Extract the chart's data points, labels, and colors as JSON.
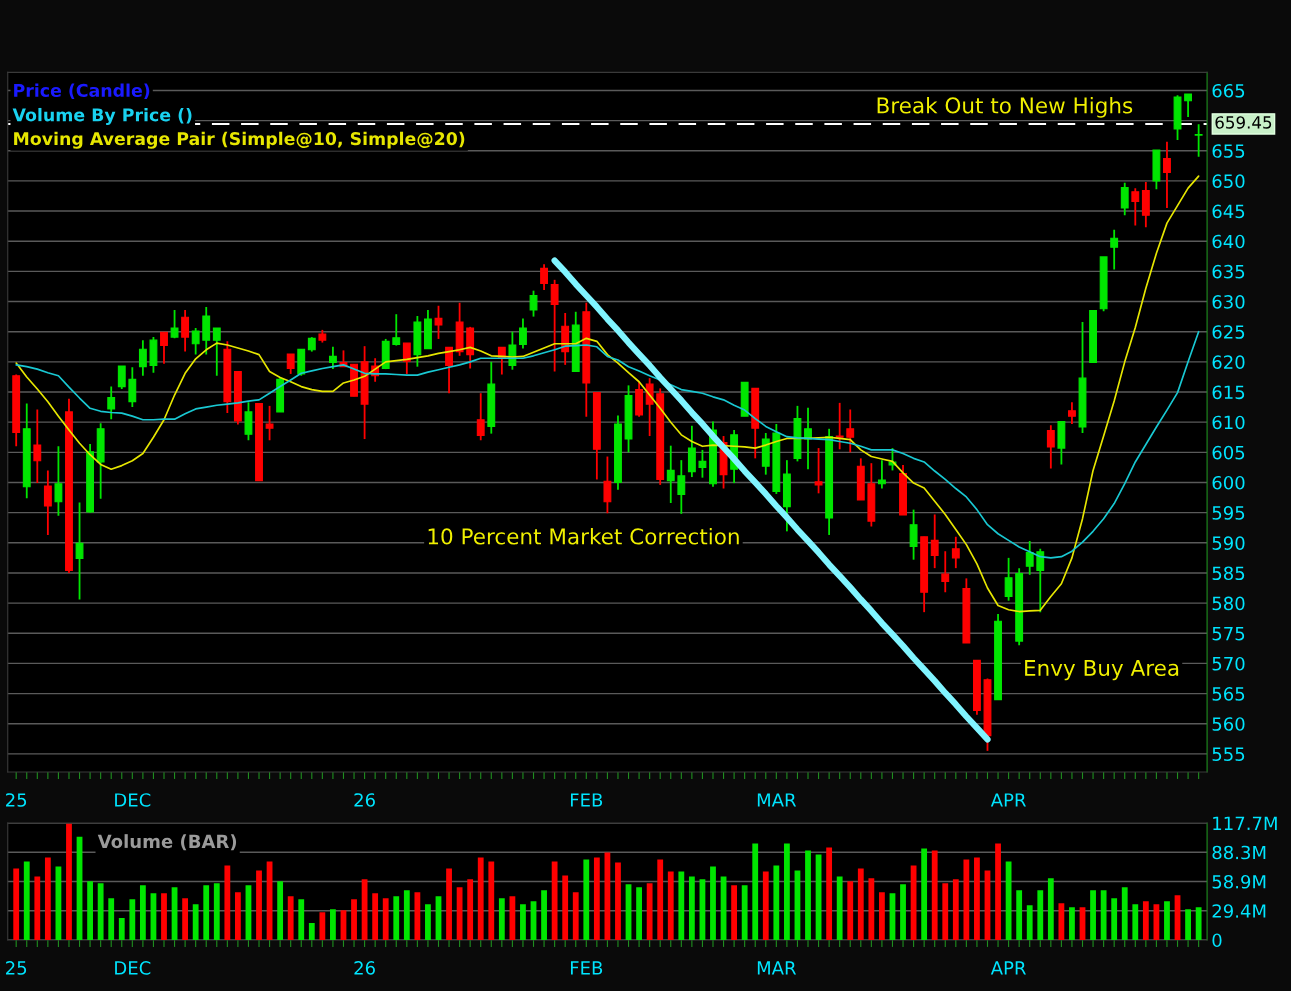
{
  "chart_data": [
    {
      "type": "candlestick",
      "categories": [
        "25",
        null,
        null,
        null,
        null,
        null,
        null,
        null,
        null,
        null,
        null,
        "DEC",
        null,
        null,
        null,
        null,
        null,
        null,
        null,
        null,
        null,
        null,
        null,
        null,
        null,
        null,
        null,
        null,
        null,
        null,
        null,
        null,
        null,
        "26",
        null,
        null,
        null,
        null,
        null,
        null,
        null,
        null,
        null,
        null,
        null,
        null,
        null,
        null,
        null,
        null,
        null,
        null,
        null,
        null,
        "FEB",
        null,
        null,
        null,
        null,
        null,
        null,
        null,
        null,
        null,
        null,
        null,
        null,
        null,
        null,
        null,
        null,
        null,
        "MAR",
        null,
        null,
        null,
        null,
        null,
        null,
        null,
        null,
        null,
        null,
        null,
        null,
        null,
        null,
        null,
        null,
        null,
        null,
        null,
        null,
        null,
        "APR",
        null,
        null,
        null,
        null,
        null,
        null,
        null,
        null,
        null,
        null,
        null,
        null,
        null,
        null,
        null,
        null,
        null,
        null
      ],
      "ohlc": [
        [
          617.7,
          617.9,
          606.0,
          608.3
        ],
        [
          599.3,
          613.1,
          597.4,
          608.9
        ],
        [
          606.2,
          612.1,
          599.9,
          603.6
        ],
        [
          599.4,
          602.0,
          591.3,
          596.1
        ],
        [
          596.8,
          606.0,
          594.5,
          599.8
        ],
        [
          611.7,
          613.9,
          585.0,
          585.4
        ],
        [
          587.4,
          596.7,
          580.6,
          589.9
        ],
        [
          595.1,
          606.4,
          595.0,
          605.1
        ],
        [
          603.4,
          609.8,
          597.3,
          608.9
        ],
        [
          612.2,
          615.9,
          610.5,
          614.1
        ],
        [
          615.9,
          619.3,
          615.5,
          619.3
        ],
        [
          613.4,
          619.1,
          612.5,
          617.1
        ],
        [
          619.2,
          623.6,
          617.7,
          622.1
        ],
        [
          619.4,
          624.1,
          618.2,
          623.6
        ],
        [
          624.9,
          624.9,
          619.7,
          622.7
        ],
        [
          624.1,
          628.6,
          623.9,
          625.6
        ],
        [
          627.4,
          628.6,
          621.7,
          624.1
        ],
        [
          623.0,
          625.6,
          621.2,
          625.1
        ],
        [
          623.6,
          629.1,
          621.2,
          627.6
        ],
        [
          623.6,
          625.6,
          617.7,
          625.6
        ],
        [
          622.1,
          623.4,
          611.5,
          613.4
        ],
        [
          618.4,
          618.4,
          609.6,
          610.2
        ],
        [
          608.0,
          613.3,
          607.0,
          611.7
        ],
        [
          613.1,
          613.1,
          600.3,
          600.3
        ],
        [
          609.7,
          612.7,
          607.0,
          609.0
        ],
        [
          611.7,
          617.5,
          611.7,
          617.1
        ],
        [
          621.3,
          621.3,
          618.0,
          618.9
        ],
        [
          618.0,
          622.1,
          617.7,
          622.1
        ],
        [
          622.0,
          624.1,
          621.7,
          623.9
        ],
        [
          624.6,
          625.3,
          623.2,
          623.6
        ],
        [
          619.9,
          622.5,
          618.8,
          620.9
        ],
        [
          619.9,
          621.9,
          619.2,
          619.2
        ],
        [
          619.6,
          619.6,
          614.3,
          614.3
        ],
        [
          620.0,
          622.6,
          607.2,
          613.0
        ],
        [
          619.3,
          620.6,
          616.7,
          617.7
        ],
        [
          618.9,
          623.8,
          618.8,
          623.4
        ],
        [
          622.9,
          627.9,
          622.7,
          624.0
        ],
        [
          623.1,
          623.1,
          618.0,
          620.1
        ],
        [
          621.2,
          627.6,
          619.2,
          626.6
        ],
        [
          622.2,
          628.6,
          622.2,
          627.1
        ],
        [
          627.2,
          629.3,
          623.8,
          626.1
        ],
        [
          622.4,
          622.4,
          614.8,
          619.4
        ],
        [
          626.6,
          629.8,
          621.0,
          621.7
        ],
        [
          625.6,
          625.8,
          618.9,
          621.2
        ],
        [
          610.4,
          614.8,
          607.0,
          607.8
        ],
        [
          609.3,
          620.0,
          608.1,
          616.3
        ],
        [
          622.4,
          622.4,
          617.9,
          620.7
        ],
        [
          619.4,
          625.0,
          618.7,
          622.8
        ],
        [
          622.9,
          627.2,
          622.2,
          625.6
        ],
        [
          628.6,
          631.8,
          627.5,
          631.0
        ],
        [
          635.5,
          636.2,
          631.9,
          633.0
        ],
        [
          632.8,
          633.6,
          618.4,
          629.5
        ],
        [
          625.9,
          628.1,
          619.5,
          621.7
        ],
        [
          618.4,
          628.3,
          618.4,
          626.1
        ],
        [
          628.3,
          629.8,
          610.9,
          616.5
        ],
        [
          614.9,
          614.9,
          600.5,
          605.5
        ],
        [
          600.2,
          604.3,
          594.9,
          596.8
        ],
        [
          600.0,
          611.1,
          598.8,
          609.7
        ],
        [
          607.2,
          616.1,
          605.0,
          614.4
        ],
        [
          615.4,
          616.7,
          610.9,
          611.2
        ],
        [
          616.3,
          617.3,
          607.7,
          613.0
        ],
        [
          614.7,
          615.6,
          599.6,
          600.5
        ],
        [
          600.3,
          606.1,
          596.6,
          602.0
        ],
        [
          598.0,
          603.7,
          594.8,
          601.1
        ],
        [
          601.8,
          609.4,
          600.9,
          605.7
        ],
        [
          602.5,
          605.4,
          600.8,
          603.5
        ],
        [
          599.8,
          610.1,
          599.3,
          608.7
        ],
        [
          606.6,
          607.7,
          599.0,
          601.3
        ],
        [
          602.2,
          608.7,
          599.9,
          607.9
        ],
        [
          611.0,
          616.6,
          611.0,
          616.6
        ],
        [
          615.6,
          615.6,
          604.0,
          609.0
        ],
        [
          602.7,
          608.2,
          601.3,
          607.2
        ],
        [
          598.5,
          609.7,
          598.1,
          608.2
        ],
        [
          596.0,
          603.7,
          591.9,
          601.4
        ],
        [
          604.0,
          612.7,
          603.5,
          610.6
        ],
        [
          607.2,
          612.4,
          602.2,
          608.9
        ],
        [
          600.1,
          605.7,
          598.2,
          599.6
        ],
        [
          594.1,
          608.9,
          591.3,
          607.6
        ],
        [
          607.7,
          613.2,
          605.5,
          607.5
        ],
        [
          608.9,
          612.1,
          605.0,
          607.5
        ],
        [
          602.7,
          604.0,
          597.1,
          597.1
        ],
        [
          599.8,
          603.2,
          592.7,
          593.6
        ],
        [
          599.8,
          603.7,
          599.0,
          600.4
        ],
        [
          602.9,
          605.7,
          602.0,
          603.4
        ],
        [
          601.5,
          602.9,
          594.6,
          594.6
        ],
        [
          589.4,
          595.5,
          587.2,
          593.0
        ],
        [
          591.0,
          591.0,
          578.5,
          581.8
        ],
        [
          590.4,
          594.7,
          585.8,
          587.9
        ],
        [
          584.8,
          588.6,
          581.8,
          583.6
        ],
        [
          589.0,
          591.0,
          585.8,
          587.5
        ],
        [
          582.4,
          584.1,
          573.4,
          573.4
        ],
        [
          570.5,
          570.5,
          561.5,
          562.2
        ],
        [
          567.3,
          567.5,
          555.5,
          558.0
        ],
        [
          564.0,
          578.2,
          564.0,
          577.0
        ],
        [
          581.1,
          587.5,
          580.4,
          584.2
        ],
        [
          573.7,
          585.8,
          573.0,
          584.9
        ],
        [
          586.1,
          590.3,
          584.7,
          588.4
        ],
        [
          585.4,
          589.0,
          578.5,
          588.5
        ],
        [
          608.6,
          609.5,
          602.3,
          605.9
        ],
        [
          605.7,
          610.1,
          603.0,
          610.1
        ],
        [
          611.9,
          613.3,
          609.7,
          611.0
        ],
        [
          609.2,
          626.6,
          608.2,
          617.3
        ],
        [
          619.9,
          628.5,
          619.9,
          628.5
        ],
        [
          628.8,
          637.4,
          628.4,
          637.4
        ],
        [
          639.0,
          641.9,
          635.3,
          640.5
        ],
        [
          645.5,
          649.7,
          644.3,
          648.9
        ],
        [
          648.2,
          648.8,
          642.6,
          646.6
        ],
        [
          648.4,
          649.8,
          642.3,
          644.3
        ],
        [
          650.0,
          655.1,
          648.6,
          655.1
        ],
        [
          653.7,
          656.5,
          645.5,
          651.4
        ],
        [
          658.6,
          664.2,
          656.8,
          663.9
        ],
        [
          663.3,
          664.4,
          660.6,
          664.4
        ],
        [
          657.6,
          659.4,
          654.0,
          657.7
        ]
      ],
      "colors": [
        "#ff0000",
        "#00e600",
        "#ff0000",
        "#ff0000",
        "#00e600",
        "#ff0000",
        "#00e600",
        "#00e600",
        "#00e600",
        "#00e600",
        "#00e600",
        "#00e600",
        "#00e600",
        "#00e600",
        "#ff0000",
        "#00e600",
        "#ff0000",
        "#00e600",
        "#00e600",
        "#00e600",
        "#ff0000",
        "#ff0000",
        "#00e600",
        "#ff0000",
        "#ff0000",
        "#00e600",
        "#ff0000",
        "#00e600",
        "#00e600",
        "#ff0000",
        "#00e600",
        "#ff0000",
        "#ff0000",
        "#ff0000",
        "#ff0000",
        "#00e600",
        "#00e600",
        "#ff0000",
        "#00e600",
        "#00e600",
        "#ff0000",
        "#ff0000",
        "#ff0000",
        "#ff0000",
        "#ff0000",
        "#00e600",
        "#ff0000",
        "#00e600",
        "#00e600",
        "#00e600",
        "#ff0000",
        "#ff0000",
        "#ff0000",
        "#00e600",
        "#ff0000",
        "#ff0000",
        "#ff0000",
        "#00e600",
        "#00e600",
        "#ff0000",
        "#ff0000",
        "#ff0000",
        "#00e600",
        "#00e600",
        "#00e600",
        "#00e600",
        "#00e600",
        "#ff0000",
        "#00e600",
        "#00e600",
        "#ff0000",
        "#00e600",
        "#00e600",
        "#00e600",
        "#00e600",
        "#00e600",
        "#ff0000",
        "#00e600",
        "#ff0000",
        "#ff0000",
        "#ff0000",
        "#ff0000",
        "#00e600",
        "#00e600",
        "#ff0000",
        "#00e600",
        "#ff0000",
        "#ff0000",
        "#ff0000",
        "#ff0000",
        "#ff0000",
        "#ff0000",
        "#ff0000",
        "#00e600",
        "#00e600",
        "#00e600",
        "#00e600",
        "#00e600",
        "#ff0000",
        "#00e600",
        "#ff0000",
        "#00e600",
        "#00e600",
        "#00e600",
        "#00e600",
        "#00e600",
        "#ff0000",
        "#ff0000",
        "#00e600",
        "#ff0000",
        "#00e600",
        "#00e600",
        "#00e600"
      ],
      "series": [
        {
          "name": "Moving Average Pair (Simple@10, Simple@20)",
          "type": "line",
          "color": "#e6e600",
          "values": [
            619.8,
            617.5,
            615.5,
            613.4,
            611.0,
            608.7,
            606.5,
            604.6,
            603.0,
            602.2,
            602.8,
            603.6,
            604.8,
            607.5,
            610.4,
            614.5,
            618.1,
            620.5,
            622.0,
            623.1,
            622.8,
            622.3,
            621.8,
            621.2,
            618.4,
            617.4,
            616.7,
            615.9,
            615.4,
            615.1,
            615.1,
            616.5,
            617.0,
            617.6,
            618.8,
            620.0,
            620.2,
            620.4,
            620.7,
            621.0,
            621.4,
            621.7,
            622.0,
            622.4,
            621.8,
            621.0,
            620.9,
            620.8,
            620.9,
            621.6,
            622.3,
            623.0,
            623.0,
            623.0,
            623.9,
            623.4,
            621.2,
            619.8,
            618.2,
            616.7,
            614.5,
            612.3,
            610.0,
            607.9,
            606.8,
            606.0,
            606.2,
            606.1,
            606.0,
            605.9,
            605.7,
            606.2,
            606.8,
            607.3,
            607.3,
            607.3,
            607.4,
            607.5,
            607.3,
            607.1,
            605.4,
            604.3,
            603.9,
            603.5,
            601.6,
            599.9,
            599.1,
            596.9,
            594.7,
            592.2,
            589.7,
            586.5,
            582.5,
            579.6,
            578.9,
            578.6,
            578.7,
            578.8,
            581.1,
            583.2,
            587.5,
            594.0,
            602.0,
            607.7,
            613.5,
            620.0,
            625.7,
            632.2,
            638.0,
            643.0,
            645.9,
            648.8,
            650.8
          ]
        },
        {
          "type": "line",
          "color": "#19c8d2",
          "values": [
            619.5,
            619.2,
            618.8,
            618.2,
            617.7,
            615.8,
            614.0,
            612.3,
            611.8,
            611.6,
            611.5,
            611.0,
            610.4,
            610.4,
            610.5,
            610.5,
            611.4,
            612.2,
            612.5,
            612.8,
            613.0,
            613.2,
            613.5,
            613.7,
            614.8,
            615.9,
            617.0,
            618.1,
            618.5,
            618.9,
            619.2,
            619.5,
            618.8,
            618.1,
            618.0,
            618.0,
            617.9,
            617.8,
            617.8,
            618.3,
            618.7,
            619.1,
            619.5,
            620.0,
            620.6,
            620.6,
            620.6,
            620.6,
            620.6,
            621.0,
            621.5,
            622.0,
            622.6,
            622.7,
            622.8,
            622.5,
            620.9,
            620.3,
            619.2,
            618.5,
            617.7,
            617.0,
            616.2,
            615.4,
            615.1,
            614.8,
            614.2,
            613.7,
            612.8,
            612.0,
            610.6,
            609.3,
            608.4,
            607.6,
            607.4,
            607.3,
            607.2,
            607.1,
            606.8,
            606.5,
            606.0,
            605.4,
            605.4,
            605.4,
            604.8,
            604.0,
            603.4,
            601.9,
            600.5,
            599.0,
            597.6,
            595.5,
            593.0,
            591.5,
            590.4,
            589.3,
            588.5,
            587.7,
            587.5,
            587.7,
            588.6,
            590.1,
            591.9,
            594.0,
            596.5,
            599.8,
            603.4,
            606.3,
            609.2,
            612.0,
            614.9,
            620.0,
            625.0
          ]
        },
        {
          "type": "line",
          "color": "#80f4ff",
          "values": [
            null,
            null,
            null,
            null,
            null,
            null,
            null,
            null,
            null,
            null,
            null,
            null,
            null,
            null,
            null,
            null,
            null,
            null,
            null,
            null,
            null,
            null,
            null,
            null,
            null,
            null,
            null,
            null,
            null,
            null,
            null,
            null,
            null,
            null,
            null,
            null,
            null,
            null,
            null,
            null,
            null,
            null,
            null,
            null,
            null,
            null,
            null,
            null,
            null,
            null,
            null,
            636.8,
            634.9,
            632.9,
            631.0,
            629.1,
            627.1,
            625.2,
            623.2,
            621.3,
            619.4,
            617.4,
            615.5,
            613.6,
            611.6,
            609.7,
            607.7,
            605.8,
            603.9,
            601.9,
            600.0,
            598.1,
            596.1,
            594.2,
            592.2,
            590.3,
            588.4,
            586.4,
            584.5,
            582.6,
            580.6,
            578.7,
            576.7,
            574.8,
            572.9,
            570.9,
            569.0,
            567.1,
            565.1,
            563.2,
            561.2,
            559.3,
            557.4,
            null,
            null,
            null,
            null,
            null,
            null,
            null,
            null,
            null,
            null,
            null,
            null,
            null,
            null,
            null,
            null,
            null,
            null,
            null,
            null
          ]
        }
      ],
      "annotations": [
        "Price (Candle)",
        "Volume By Price ()",
        "Break Out to New Highs",
        "10 Percent Market Correction",
        "Envy Buy Area"
      ],
      "ref_lines": [
        {
          "axis": "y",
          "value": 659.45,
          "label": "659.45",
          "color": "#ffffff",
          "line_style": "dashed"
        }
      ],
      "ylim": [
        552,
        668
      ],
      "yticks": [
        555,
        560,
        565,
        570,
        575,
        580,
        585,
        590,
        595,
        600,
        605,
        610,
        615,
        620,
        625,
        630,
        635,
        640,
        645,
        650,
        655,
        {
          "value": 660,
          "label": null
        },
        665
      ],
      "grid": "y",
      "legend": "top left"
    },
    {
      "type": "bar",
      "title": "Volume (BAR)",
      "categories": [
        "25",
        null,
        null,
        null,
        null,
        null,
        null,
        null,
        null,
        null,
        null,
        "DEC",
        null,
        null,
        null,
        null,
        null,
        null,
        null,
        null,
        null,
        null,
        null,
        null,
        null,
        null,
        null,
        null,
        null,
        null,
        null,
        null,
        null,
        "26",
        null,
        null,
        null,
        null,
        null,
        null,
        null,
        null,
        null,
        null,
        null,
        null,
        null,
        null,
        null,
        null,
        null,
        null,
        null,
        null,
        "FEB",
        null,
        null,
        null,
        null,
        null,
        null,
        null,
        null,
        null,
        null,
        null,
        null,
        null,
        null,
        null,
        null,
        null,
        "MAR",
        null,
        null,
        null,
        null,
        null,
        null,
        null,
        null,
        null,
        null,
        null,
        null,
        null,
        null,
        null,
        null,
        null,
        null,
        null,
        null,
        null,
        "APR",
        null,
        null,
        null,
        null,
        null,
        null,
        null,
        null,
        null,
        null,
        null,
        null,
        null,
        null,
        null,
        null,
        null,
        null
      ],
      "values": [
        72,
        79,
        64,
        83,
        74,
        117,
        104,
        59,
        57,
        42,
        22,
        41,
        55,
        47,
        47,
        53,
        42,
        36,
        55,
        57,
        75,
        48,
        55,
        70,
        79,
        59,
        44,
        41,
        17,
        28,
        31,
        30,
        41,
        61,
        47,
        42,
        44,
        50,
        48,
        36,
        44,
        72,
        53,
        61,
        83,
        79,
        42,
        44,
        36,
        39,
        50,
        79,
        65,
        48,
        81,
        83,
        88,
        78,
        56,
        53,
        57,
        81,
        69,
        69,
        64,
        61,
        74,
        64,
        55,
        55,
        97,
        69,
        75,
        97,
        70,
        90,
        86,
        93,
        64,
        59,
        72,
        62,
        48,
        47,
        56,
        75,
        92,
        90,
        57,
        61,
        81,
        83,
        70,
        97,
        79,
        50,
        35,
        50,
        62,
        37,
        33,
        33,
        50,
        50,
        42,
        53,
        36,
        39,
        36,
        39,
        45,
        31,
        33
      ],
      "colors": [
        "#ff0000",
        "#00e600",
        "#ff0000",
        "#ff0000",
        "#00e600",
        "#ff0000",
        "#00e600",
        "#00e600",
        "#00e600",
        "#00e600",
        "#00e600",
        "#00e600",
        "#00e600",
        "#00e600",
        "#ff0000",
        "#00e600",
        "#ff0000",
        "#00e600",
        "#00e600",
        "#00e600",
        "#ff0000",
        "#ff0000",
        "#00e600",
        "#ff0000",
        "#ff0000",
        "#00e600",
        "#ff0000",
        "#00e600",
        "#00e600",
        "#ff0000",
        "#00e600",
        "#ff0000",
        "#ff0000",
        "#ff0000",
        "#ff0000",
        "#ff0000",
        "#00e600",
        "#00e600",
        "#ff0000",
        "#00e600",
        "#00e600",
        "#ff0000",
        "#ff0000",
        "#ff0000",
        "#ff0000",
        "#ff0000",
        "#00e600",
        "#ff0000",
        "#00e600",
        "#00e600",
        "#00e600",
        "#ff0000",
        "#ff0000",
        "#ff0000",
        "#00e600",
        "#ff0000",
        "#ff0000",
        "#ff0000",
        "#00e600",
        "#00e600",
        "#ff0000",
        "#ff0000",
        "#ff0000",
        "#00e600",
        "#00e600",
        "#00e600",
        "#00e600",
        "#00e600",
        "#ff0000",
        "#00e600",
        "#00e600",
        "#ff0000",
        "#00e600",
        "#00e600",
        "#00e600",
        "#00e600",
        "#00e600",
        "#ff0000",
        "#00e600",
        "#ff0000",
        "#ff0000",
        "#ff0000",
        "#ff0000",
        "#00e600",
        "#00e600",
        "#ff0000",
        "#00e600",
        "#ff0000",
        "#ff0000",
        "#ff0000",
        "#ff0000",
        "#ff0000",
        "#ff0000",
        "#ff0000",
        "#00e600",
        "#00e600",
        "#00e600",
        "#00e600",
        "#00e600",
        "#ff0000",
        "#00e600",
        "#ff0000",
        "#00e600",
        "#00e600",
        "#00e600",
        "#00e600",
        "#00e600",
        "#ff0000",
        "#ff0000",
        "#00e600",
        "#ff0000",
        "#00e600",
        "#00e600"
      ],
      "ylim": [
        0,
        117.7
      ],
      "yticks": [
        0,
        {
          "value": 29.4,
          "label": "29.4M"
        },
        {
          "value": 58.9,
          "label": "58.9M"
        },
        {
          "value": 88.3,
          "label": "88.3M"
        },
        {
          "value": 117.7,
          "label": "117.7M"
        }
      ],
      "grid": "y"
    }
  ]
}
